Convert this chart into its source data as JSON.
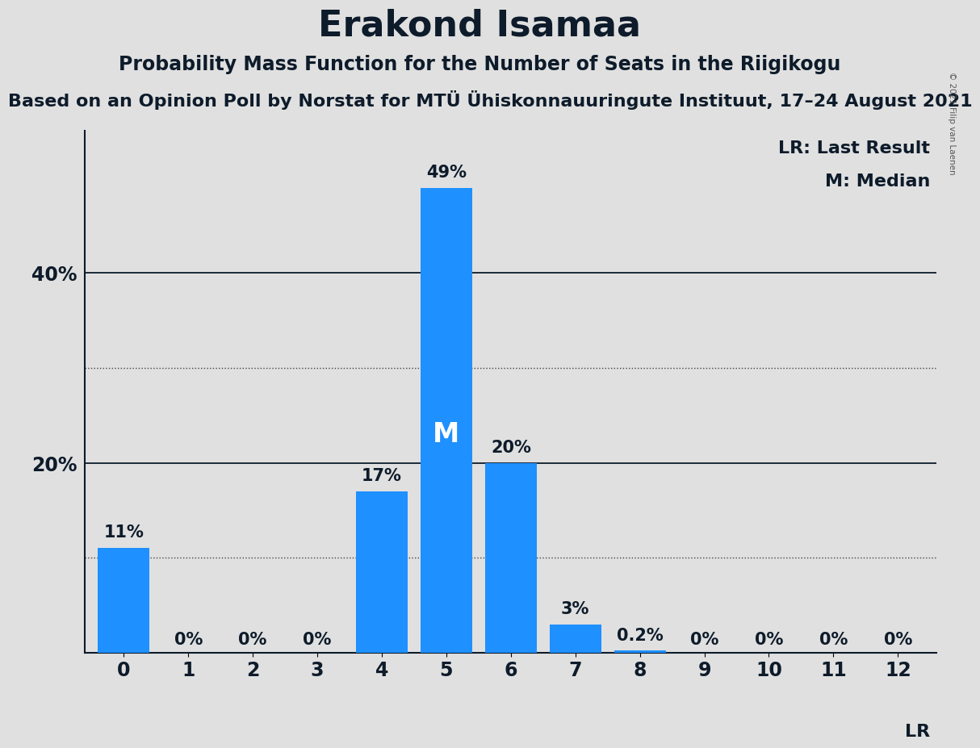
{
  "title": "Erakond Isamaa",
  "subtitle": "Probability Mass Function for the Number of Seats in the Riigikogu",
  "source_line": "Based on an Opinion Poll by Norstat for MTÜ Ühiskonnauuringute Instituut, 17–24 August 2021",
  "copyright": "© 2021 Filip van Laenen",
  "categories": [
    0,
    1,
    2,
    3,
    4,
    5,
    6,
    7,
    8,
    9,
    10,
    11,
    12
  ],
  "values": [
    11,
    0,
    0,
    0,
    17,
    49,
    20,
    3,
    0.2,
    0,
    0,
    0,
    0
  ],
  "labels": [
    "11%",
    "0%",
    "0%",
    "0%",
    "17%",
    "49%",
    "20%",
    "3%",
    "0.2%",
    "0%",
    "0%",
    "0%",
    "0%"
  ],
  "bar_color": "#1e90ff",
  "background_color": "#e0e0e0",
  "median_seat": 5,
  "lr_seat": 12,
  "lr_label": "LR",
  "legend_lr": "LR: Last Result",
  "legend_m": "M: Median",
  "dotted_lines": [
    10,
    30
  ],
  "ylim": [
    0,
    55
  ],
  "title_fontsize": 32,
  "subtitle_fontsize": 17,
  "source_fontsize": 16,
  "bar_label_fontsize": 15,
  "axis_fontsize": 17,
  "legend_fontsize": 16,
  "text_color": "#0d1b2a"
}
